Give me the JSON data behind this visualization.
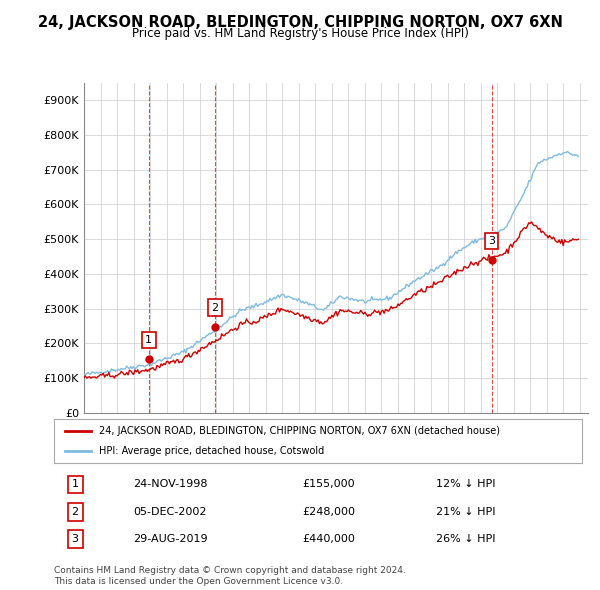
{
  "title": "24, JACKSON ROAD, BLEDINGTON, CHIPPING NORTON, OX7 6XN",
  "subtitle": "Price paid vs. HM Land Registry's House Price Index (HPI)",
  "ylabel_prefix": "£",
  "yticks": [
    0,
    100000,
    200000,
    300000,
    400000,
    500000,
    600000,
    700000,
    800000,
    900000
  ],
  "ytick_labels": [
    "£0",
    "£100K",
    "£200K",
    "£300K",
    "£400K",
    "£500K",
    "£600K",
    "£700K",
    "£800K",
    "£900K"
  ],
  "ylim": [
    0,
    950000
  ],
  "hpi_color": "#7fbbde",
  "price_color": "#cc0000",
  "sale_marker_color": "#cc0000",
  "sale_marker_size": 6,
  "background_color": "#ffffff",
  "grid_color": "#cccccc",
  "sale_vline_color": "#cc0000",
  "title_fontsize": 11,
  "subtitle_fontsize": 9.5,
  "legend_label_price": "24, JACKSON ROAD, BLEDINGTON, CHIPPING NORTON, OX7 6XN (detached house)",
  "legend_label_hpi": "HPI: Average price, detached house, Cotswold",
  "sales": [
    {
      "date_idx": 3.9,
      "price": 155000,
      "label": "1",
      "date_str": "24-NOV-1998",
      "pct": "12%",
      "direction": "↓"
    },
    {
      "date_idx": 8.0,
      "price": 248000,
      "label": "2",
      "date_str": "05-DEC-2002",
      "pct": "21%",
      "direction": "↓"
    },
    {
      "date_idx": 24.7,
      "price": 440000,
      "label": "3",
      "date_str": "29-AUG-2019",
      "pct": "26%",
      "direction": "↓"
    }
  ],
  "table_rows": [
    {
      "num": "1",
      "date": "24-NOV-1998",
      "price": "£155,000",
      "pct": "12% ↓ HPI"
    },
    {
      "num": "2",
      "date": "05-DEC-2002",
      "price": "£248,000",
      "pct": "21% ↓ HPI"
    },
    {
      "num": "3",
      "date": "29-AUG-2019",
      "price": "£440,000",
      "pct": "26% ↓ HPI"
    }
  ],
  "footer": "Contains HM Land Registry data © Crown copyright and database right 2024.\nThis data is licensed under the Open Government Licence v3.0.",
  "x_start_year": 1995,
  "x_end_year": 2025
}
